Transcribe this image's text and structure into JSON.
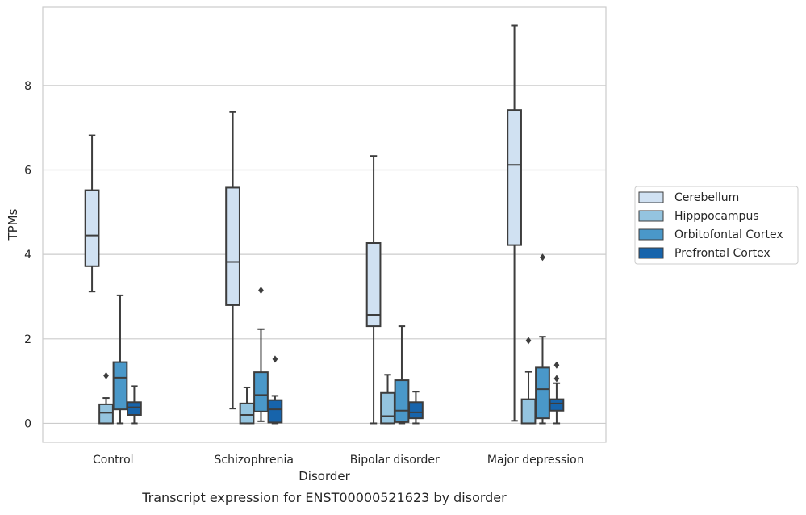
{
  "chart_data": {
    "type": "box",
    "caption": "Transcript expression for ENST00000521623 by disorder",
    "xlabel": "Disorder",
    "ylabel": "TPMs",
    "ylim": [
      -0.45,
      9.85
    ],
    "yticks": [
      0,
      2,
      4,
      6,
      8
    ],
    "grid": "horizontal",
    "legend_position": "right",
    "categories": [
      "Control",
      "Schizophrenia",
      "Bipolar disorder",
      "Major depression"
    ],
    "series": [
      {
        "name": "Cerebellum",
        "color": "#d0e1f2",
        "boxes": [
          {
            "whisker_low": 3.12,
            "q1": 3.72,
            "median": 4.45,
            "q3": 5.52,
            "whisker_high": 6.82,
            "outliers": []
          },
          {
            "whisker_low": 0.35,
            "q1": 2.8,
            "median": 3.82,
            "q3": 5.58,
            "whisker_high": 7.37,
            "outliers": []
          },
          {
            "whisker_low": 0.0,
            "q1": 2.3,
            "median": 2.57,
            "q3": 4.27,
            "whisker_high": 6.33,
            "outliers": []
          },
          {
            "whisker_low": 0.06,
            "q1": 4.22,
            "median": 6.12,
            "q3": 7.42,
            "whisker_high": 9.42,
            "outliers": []
          }
        ]
      },
      {
        "name": "Hipppocampus",
        "color": "#94c4df",
        "boxes": [
          {
            "whisker_low": 0.0,
            "q1": 0.0,
            "median": 0.25,
            "q3": 0.45,
            "whisker_high": 0.6,
            "outliers": [
              1.13
            ]
          },
          {
            "whisker_low": 0.0,
            "q1": 0.0,
            "median": 0.2,
            "q3": 0.47,
            "whisker_high": 0.85,
            "outliers": []
          },
          {
            "whisker_low": 0.0,
            "q1": 0.0,
            "median": 0.17,
            "q3": 0.72,
            "whisker_high": 1.15,
            "outliers": []
          },
          {
            "whisker_low": 0.0,
            "q1": 0.0,
            "median": 0.0,
            "q3": 0.57,
            "whisker_high": 1.22,
            "outliers": [
              1.96
            ]
          }
        ]
      },
      {
        "name": "Orbitofontal Cortex",
        "color": "#4a98c9",
        "boxes": [
          {
            "whisker_low": 0.0,
            "q1": 0.33,
            "median": 1.08,
            "q3": 1.45,
            "whisker_high": 3.03,
            "outliers": []
          },
          {
            "whisker_low": 0.05,
            "q1": 0.28,
            "median": 0.67,
            "q3": 1.21,
            "whisker_high": 2.23,
            "outliers": [
              3.15
            ]
          },
          {
            "whisker_low": 0.0,
            "q1": 0.03,
            "median": 0.3,
            "q3": 1.02,
            "whisker_high": 2.3,
            "outliers": []
          },
          {
            "whisker_low": 0.0,
            "q1": 0.12,
            "median": 0.81,
            "q3": 1.32,
            "whisker_high": 2.05,
            "outliers": [
              3.93
            ]
          }
        ]
      },
      {
        "name": "Prefrontal Cortex",
        "color": "#1764ab",
        "boxes": [
          {
            "whisker_low": 0.0,
            "q1": 0.2,
            "median": 0.38,
            "q3": 0.5,
            "whisker_high": 0.88,
            "outliers": []
          },
          {
            "whisker_low": 0.0,
            "q1": 0.02,
            "median": 0.33,
            "q3": 0.55,
            "whisker_high": 0.65,
            "outliers": [
              1.52
            ]
          },
          {
            "whisker_low": 0.0,
            "q1": 0.12,
            "median": 0.26,
            "q3": 0.5,
            "whisker_high": 0.75,
            "outliers": []
          },
          {
            "whisker_low": 0.0,
            "q1": 0.3,
            "median": 0.47,
            "q3": 0.57,
            "whisker_high": 0.95,
            "outliers": [
              1.06,
              1.38
            ]
          }
        ]
      }
    ]
  }
}
